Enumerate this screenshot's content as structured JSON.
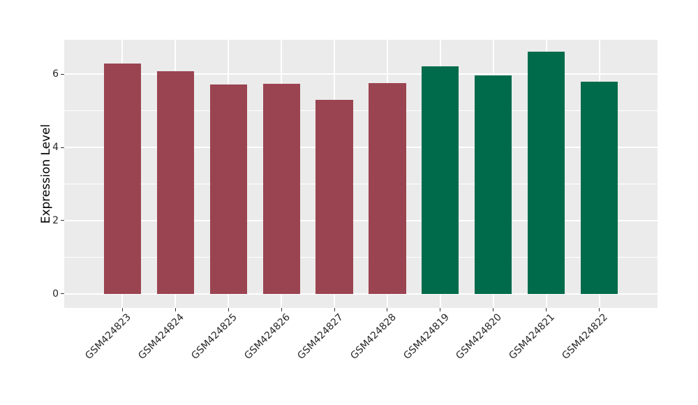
{
  "figure": {
    "background": "#FFFFFF",
    "panel_background": "#EBEBEB"
  },
  "chart_data": {
    "type": "bar",
    "title": "",
    "xlabel": "",
    "ylabel": "Expression Level",
    "categories": [
      "GSM424823",
      "GSM424824",
      "GSM424825",
      "GSM424826",
      "GSM424827",
      "GSM424828",
      "GSM424819",
      "GSM424820",
      "GSM424821",
      "GSM424822"
    ],
    "values": [
      6.3,
      6.09,
      5.71,
      5.73,
      5.3,
      5.76,
      6.21,
      5.96,
      6.61,
      5.8
    ],
    "bar_colors": [
      "#9B4451",
      "#9B4451",
      "#9B4451",
      "#9B4451",
      "#9B4451",
      "#9B4451",
      "#006B4B",
      "#006B4B",
      "#006B4B",
      "#006B4B"
    ],
    "group_colors": {
      "maroon": "#9B4451",
      "green": "#006B4B"
    },
    "yticks": [
      0,
      2,
      4,
      6
    ],
    "yticks_minor": [
      1,
      3,
      5
    ],
    "ylim": [
      -0.39,
      6.94
    ],
    "bar_width_fraction": 0.7,
    "category_expand": 0.6,
    "x_label_rotation_deg": -45,
    "grid": {
      "style": "horizontal major+minor and vertical major, white on gray panel",
      "major_color": "#FFFFFF",
      "minor_color": "#FFFFFF"
    },
    "legend": "none",
    "tick_color": "#333333",
    "axis_text_color": "#262626"
  }
}
